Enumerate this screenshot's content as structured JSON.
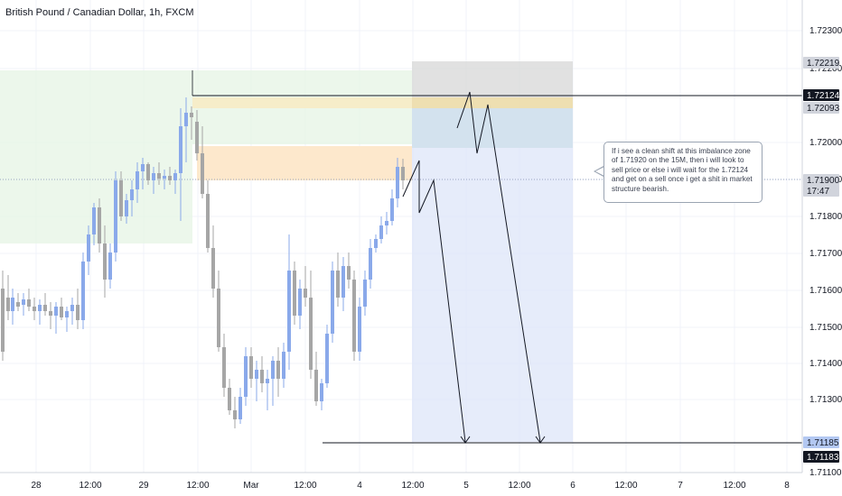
{
  "title": "British Pound / Canadian Dollar, 1h, FXCM",
  "chart_data": {
    "type": "candlestick",
    "symbol": "British Pound / Canadian Dollar",
    "interval": "1h",
    "source": "FXCM",
    "y_ticks": [
      "1.72300",
      "1.72200",
      "1.72000",
      "1.71900",
      "1.71800",
      "1.71700",
      "1.71600",
      "1.71500",
      "1.71400",
      "1.71300",
      "1.71100"
    ],
    "x_ticks": [
      "28",
      "12:00",
      "29",
      "12:00",
      "Mar",
      "12:00",
      "4",
      "12:00",
      "5",
      "12:00",
      "6",
      "12:00",
      "7",
      "12:00",
      "8"
    ],
    "price_tags": [
      {
        "label": "1.72219",
        "value": 1.72219,
        "style": "gray"
      },
      {
        "label": "1.72124",
        "value": 1.72124,
        "style": "dark"
      },
      {
        "label": "1.72093",
        "value": 1.72093,
        "style": "gray"
      },
      {
        "label": "1.71900",
        "value": 1.719,
        "style": "current"
      },
      {
        "label": "17:47",
        "style": "current-sub"
      },
      {
        "label": "1.71185",
        "value": 1.71185,
        "style": "blue"
      },
      {
        "label": "1.71183",
        "value": 1.71183,
        "style": "dark"
      }
    ],
    "levels": [
      {
        "name": "resistance",
        "value": 1.72124
      },
      {
        "name": "target",
        "value": 1.71183
      }
    ],
    "annotation_zone_value": 1.7192,
    "colors": {
      "bull": "#8aa9ea",
      "bear": "#a6a6a6",
      "grid": "#f0f3fa",
      "zone_green": "#e6f4e4",
      "zone_orange": "#fde8cc",
      "zone_gray": "#d4d4d4",
      "zone_blue": "#dde6f8",
      "text": "#131722"
    }
  },
  "note": {
    "text": "If i see a clean shift at this imbalance zone of 1.71920 on the 15M, then i will look to sell price or else i will wait for the 1.72124 and get on a sell once i get a shit in market structure bearish."
  }
}
